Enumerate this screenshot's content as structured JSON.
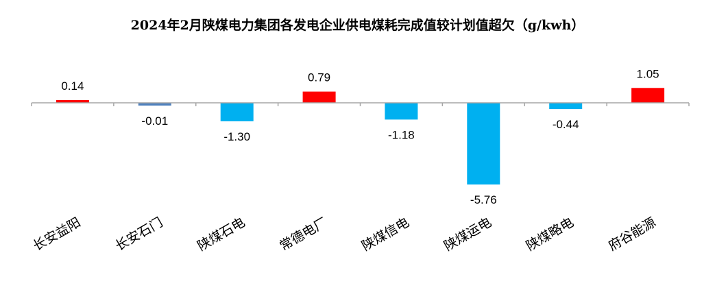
{
  "chart_data": {
    "type": "bar",
    "title": "2024年2月陕煤电力集团各发电企业供电煤耗完成值较计划值超欠（g/kwh）",
    "categories": [
      "长安益阳",
      "长安石门",
      "陕煤石电",
      "常德电厂",
      "陕煤信电",
      "陕煤运电",
      "陕煤略电",
      "府谷能源"
    ],
    "values": [
      0.14,
      -0.01,
      -1.3,
      0.79,
      -1.18,
      -5.76,
      -0.44,
      1.05
    ],
    "value_labels": [
      "0.14",
      "-0.01",
      "-1.30",
      "0.79",
      "-1.18",
      "-5.76",
      "-0.44",
      "1.05"
    ],
    "bar_colors": [
      "#FF0000",
      "#4F81BD",
      "#00B0F0",
      "#FF0000",
      "#00B0F0",
      "#00B0F0",
      "#00B0F0",
      "#FF0000"
    ],
    "xlabel": "",
    "ylabel": "",
    "grid": false,
    "legend": "none",
    "axis_color": "#A6A6A6"
  }
}
